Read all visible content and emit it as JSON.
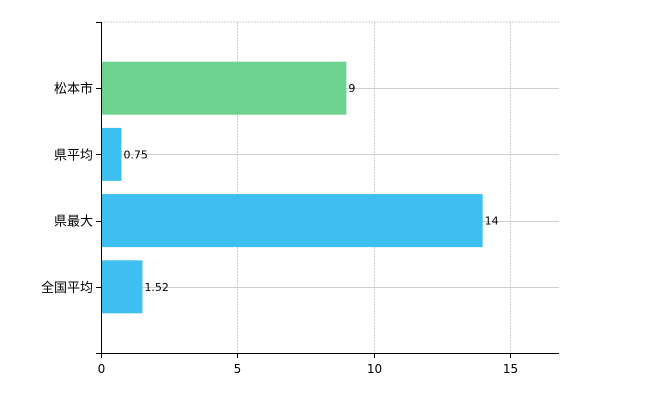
{
  "chart_data": {
    "type": "bar",
    "orientation": "horizontal",
    "categories": [
      "松本市",
      "県平均",
      "県最大",
      "全国平均"
    ],
    "values": [
      9,
      0.75,
      14,
      1.52
    ],
    "value_labels": [
      "9",
      "0.75",
      "14",
      "1.52"
    ],
    "bar_colors": [
      "#6dd38e",
      "#3dbff2",
      "#3dbff2",
      "#3dbff2"
    ],
    "xlim": [
      0,
      16.8
    ],
    "x_ticks": [
      0,
      5,
      10,
      15
    ],
    "x_tick_labels": [
      "0",
      "5",
      "10",
      "15"
    ],
    "grid": true,
    "legend": "none"
  }
}
